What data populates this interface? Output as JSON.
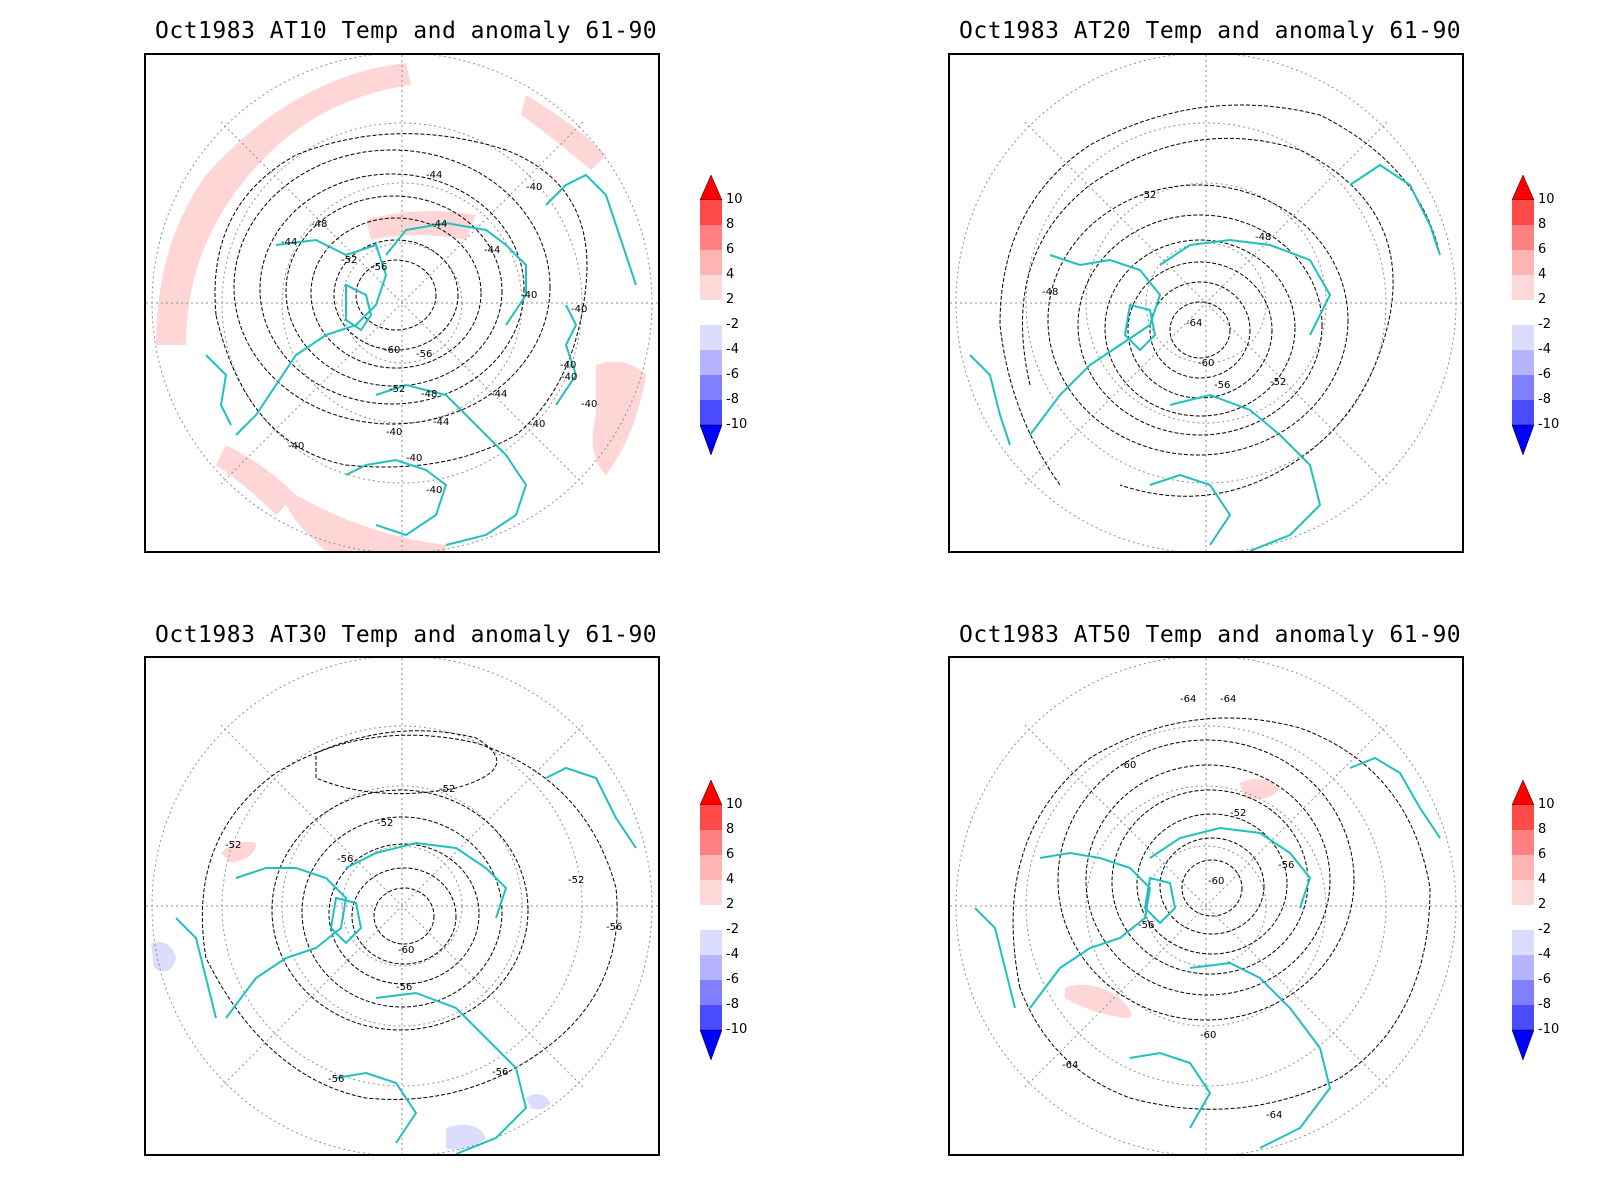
{
  "panels": [
    {
      "title": "Oct1983 AT10 Temp and anomaly 61-90",
      "contour_labels": [
        "-44",
        "-40",
        "-48",
        "-44",
        "-44",
        "-44",
        "-52",
        "-56",
        "-40",
        "-40",
        "-60",
        "-56",
        "-40",
        "-52",
        "-48",
        "-44",
        "-40",
        "-40",
        "-44",
        "-40",
        "-40",
        "-40",
        "-40",
        "-40"
      ]
    },
    {
      "title": "Oct1983 AT20 Temp and anomaly 61-90",
      "contour_labels": [
        "-52",
        "-48",
        "-48",
        "-64",
        "-60",
        "-56",
        "-52"
      ]
    },
    {
      "title": "Oct1983 AT30 Temp and anomaly 61-90",
      "contour_labels": [
        "-52",
        "-52",
        "-52",
        "-56",
        "-52",
        "-56",
        "-60",
        "-56",
        "-56",
        "-56"
      ]
    },
    {
      "title": "Oct1983 AT50 Temp and anomaly 61-90",
      "contour_labels": [
        "-64",
        "-64",
        "-60",
        "-52",
        "-56",
        "-60",
        "-56",
        "-60",
        "-64",
        "-64"
      ]
    }
  ],
  "colorbar": {
    "labels": [
      "10",
      "8",
      "6",
      "4",
      "2",
      "-2",
      "-4",
      "-6",
      "-8",
      "-10"
    ],
    "colors": [
      "#ff0000",
      "#ff4a4a",
      "#ff8080",
      "#ffb4b4",
      "#ffd8d8",
      "#ffffff",
      "#dcdcff",
      "#b4b4ff",
      "#8080ff",
      "#4a4aff",
      "#0000ff"
    ]
  },
  "colors": {
    "coastline": "#20c0c0",
    "contour": "#000000",
    "grid": "#909090",
    "anomaly_warm": "#ffd6d6",
    "anomaly_cold": "#dcdcff"
  }
}
